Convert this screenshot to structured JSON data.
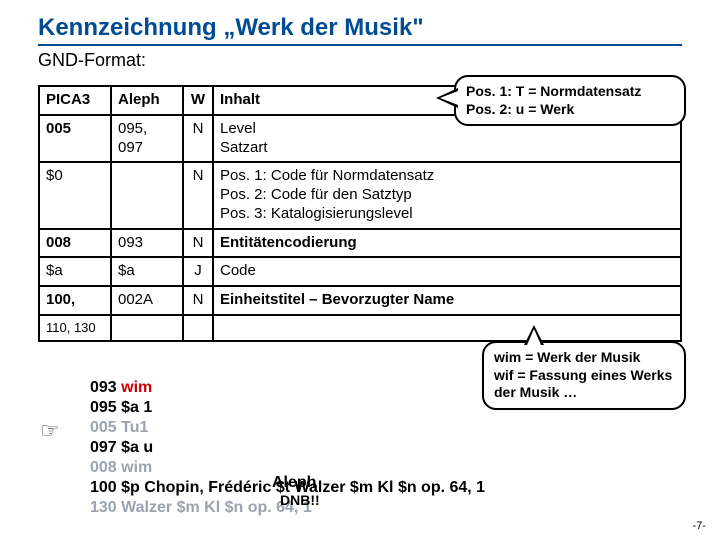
{
  "title": "Kennzeichnung „Werk der Musik\"",
  "subtitle": "GND-Format:",
  "table": {
    "headers": [
      "PICA3",
      "Aleph",
      "W",
      "Inhalt"
    ],
    "rows": [
      {
        "c0": "005",
        "c1": "095, 097",
        "c2": "N",
        "c3": "Level\nSatzart",
        "bold0": true
      },
      {
        "c0": "$0",
        "c1": "",
        "c2": "N",
        "c3": "Pos. 1: Code für Normdatensatz\nPos. 2: Code für den Satztyp\nPos. 3: Katalogisierungslevel"
      },
      {
        "c0": "008",
        "c1": "093",
        "c2": "N",
        "c3": "Entitätencodierung",
        "bold0": true,
        "bold3": true
      },
      {
        "c0": "$a",
        "c1": "$a",
        "c2": "J",
        "c3": "Code"
      },
      {
        "c0": "100,",
        "c1": "002A",
        "c2": "N",
        "c3": "Einheitstitel – Bevorzugter Name",
        "bold0": true,
        "bold3": true
      },
      {
        "c0": "110, 130",
        "c1": "",
        "c2": "",
        "c3": "",
        "small": true
      }
    ]
  },
  "callouts": {
    "pos_note": "Pos. 1: T = Normdatensatz\nPos. 2: u = Werk",
    "wim_note": "wim = Werk der Musik\nwif = Fassung eines Werks der Musik …"
  },
  "codeblock": {
    "l1_a": "093 ",
    "l1_b": "wim",
    "l2": "095 $a 1",
    "l3_a": "005 ",
    "l3_b": "Tu1",
    "l4": "097 $a u",
    "l5_a": "008 ",
    "l5_b": "wim",
    "l6": "100 $p Chopin, Frédéric $t Walzer $m Kl $n op. 64, 1",
    "l7_a": "130 ",
    "l7_b": "Walzer ",
    "l7_c": "$m",
    "l7_d": " Kl ",
    "l7_e": "$n",
    "l7_f": " op. 64, 1"
  },
  "labels": {
    "aleph": "Aleph",
    "dnb": "DNB!!",
    "pagenum": "-7-"
  },
  "colors": {
    "brand": "#004c94",
    "red": "#cc0000",
    "gray": "#9aa3af"
  }
}
